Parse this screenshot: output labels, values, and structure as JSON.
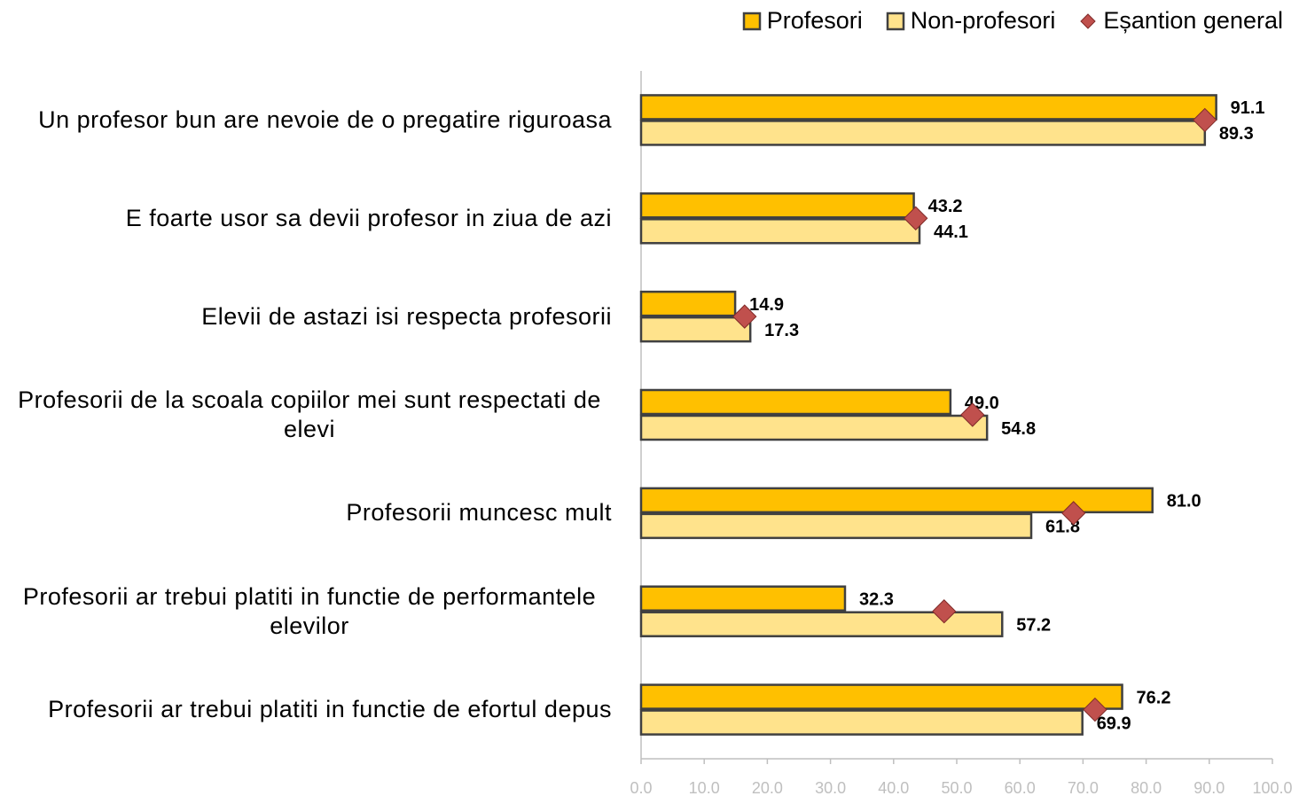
{
  "chart_data": {
    "type": "bar",
    "orientation": "horizontal",
    "categories": [
      "Un profesor bun are nevoie de o pregatire riguroasa",
      "E foarte usor sa devii profesor in ziua de azi",
      "Elevii de astazi isi respecta profesorii",
      "Profesorii de la scoala copiilor mei sunt respectati de elevi",
      "Profesorii muncesc mult",
      "Profesorii ar trebui platiti in functie de performantele elevilor",
      "Profesorii ar trebui platiti in functie de efortul depus"
    ],
    "series": [
      {
        "name": "Profesori",
        "color": "#FFC000",
        "values": [
          91.1,
          43.2,
          14.9,
          49.0,
          81.0,
          32.3,
          76.2
        ],
        "value_labels": [
          "91.1",
          "43.2",
          "14.9",
          "49.0",
          "81.0",
          "32.3",
          "76.2"
        ]
      },
      {
        "name": "Non-profesori",
        "color": "#FFE38C",
        "values": [
          89.3,
          44.1,
          17.3,
          54.8,
          61.8,
          57.2,
          69.9
        ],
        "value_labels": [
          "89.3",
          "44.1",
          "17.3",
          "54.8",
          "61.8",
          "57.2",
          "69.9"
        ]
      },
      {
        "name": "Eșantion general",
        "color": "#C0504D",
        "marker": "diamond",
        "values": [
          89.3,
          43.5,
          16.4,
          52.5,
          68.5,
          48.0,
          71.9
        ]
      }
    ],
    "xlim": [
      0,
      100
    ],
    "xticks": [
      {
        "value": 0,
        "label": "0.0"
      },
      {
        "value": 10,
        "label": "10.0"
      },
      {
        "value": 20,
        "label": "20.0"
      },
      {
        "value": 30,
        "label": "30.0"
      },
      {
        "value": 40,
        "label": "40.0"
      },
      {
        "value": 50,
        "label": "50.0"
      },
      {
        "value": 60,
        "label": "60.0"
      },
      {
        "value": 70,
        "label": "70.0"
      },
      {
        "value": 80,
        "label": "80.0"
      },
      {
        "value": 90,
        "label": "90.0"
      },
      {
        "value": 100,
        "label": "100.0"
      }
    ],
    "grid": false,
    "legend": "top-right"
  }
}
